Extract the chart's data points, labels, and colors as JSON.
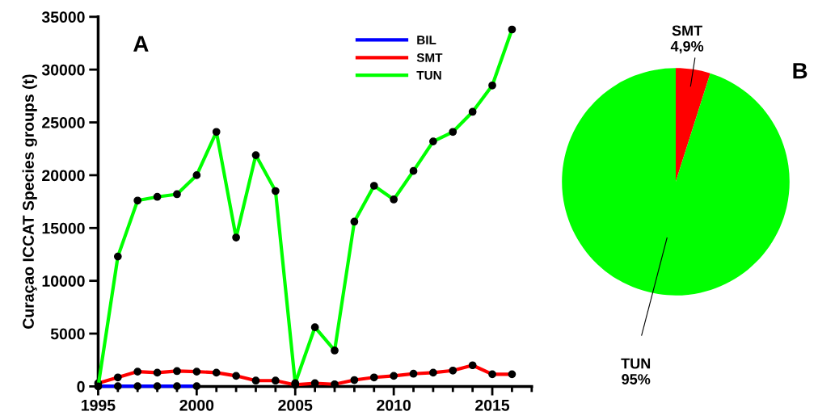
{
  "chart_data": [
    {
      "type": "line",
      "ylabel": "Curaçao ICCAT Species groups (t)",
      "annotations": [
        "A"
      ],
      "x": [
        1995,
        1996,
        1997,
        1998,
        1999,
        2000,
        2001,
        2002,
        2003,
        2004,
        2005,
        2006,
        2007,
        2008,
        2009,
        2010,
        2011,
        2012,
        2013,
        2014,
        2015,
        2016
      ],
      "series": [
        {
          "name": "BIL",
          "color": "#0000ff",
          "x": [
            1995,
            1996,
            1997,
            1998,
            1999,
            2000
          ],
          "values": [
            20,
            20,
            20,
            20,
            20,
            20
          ]
        },
        {
          "name": "SMT",
          "color": "#ff0000",
          "values": [
            300,
            850,
            1400,
            1300,
            1450,
            1400,
            1300,
            1000,
            550,
            550,
            150,
            300,
            200,
            600,
            850,
            1000,
            1200,
            1300,
            1500,
            2000,
            1150,
            1150
          ]
        },
        {
          "name": "TUN",
          "color": "#00ff00",
          "values": [
            0,
            12300,
            17600,
            17950,
            18200,
            20000,
            24100,
            14100,
            21900,
            18500,
            300,
            5600,
            3400,
            15600,
            19000,
            17700,
            20400,
            23200,
            24100,
            26000,
            28500,
            33800
          ]
        }
      ],
      "xlim": [
        1995,
        2017
      ],
      "xticks": [
        1995,
        2000,
        2005,
        2010,
        2015
      ],
      "ylim": [
        0,
        35000
      ],
      "yticks": [
        0,
        5000,
        10000,
        15000,
        20000,
        25000,
        30000,
        35000
      ],
      "grid": false,
      "legend": "top right",
      "marker": "circle",
      "line_style": "solid"
    },
    {
      "type": "pie",
      "annotations": [
        "B"
      ],
      "categories": [
        "SMT",
        "TUN"
      ],
      "values": [
        4.9,
        95
      ],
      "colors": [
        "#ff0000",
        "#00ff00"
      ],
      "value_labels": [
        "4,9%",
        "95%"
      ]
    }
  ]
}
